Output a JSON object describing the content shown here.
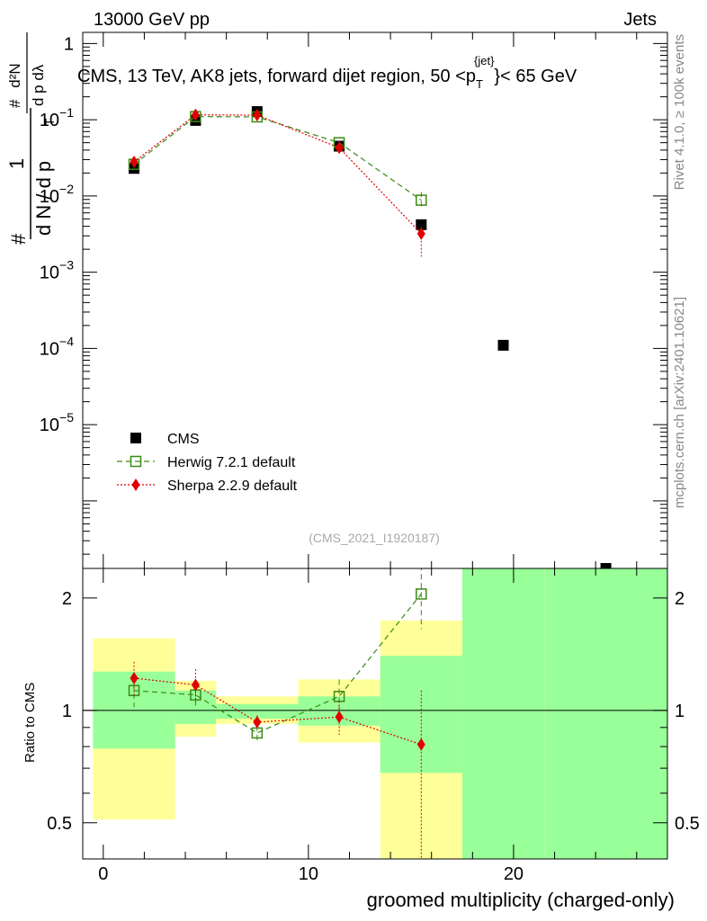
{
  "header": {
    "left": "13000 GeV pp",
    "right": "Jets"
  },
  "side_labels": {
    "rivet": "Rivet 4.1.0, ≥ 100k events",
    "mcplots": "mcplots.cern.ch [arXiv:2401.10621]"
  },
  "watermark": "(CMS_2021_I1920187)",
  "chart_data": {
    "type": "scatter",
    "title": {
      "main": "CMS, 13 TeV, AK8 jets, forward dijet region, 50 <p",
      "sub": "T",
      "sup": "{jet}",
      "tail": "}< 65 GeV"
    },
    "xlabel": "groomed multiplicity (charged-only)",
    "xlim": [
      -1,
      27.5
    ],
    "x_ticks": [
      0,
      10,
      20
    ],
    "top_panel": {
      "yscale": "log",
      "ylim": [
        1.3e-07,
        1.4
      ],
      "y_tick_labels": [
        {
          "value": 1,
          "base": "1",
          "exp": ""
        },
        {
          "value": 0.1,
          "base": "10",
          "exp": "−1"
        },
        {
          "value": 0.01,
          "base": "10",
          "exp": "−2"
        },
        {
          "value": 0.001,
          "base": "10",
          "exp": "−3"
        },
        {
          "value": 0.0001,
          "base": "10",
          "exp": "−4"
        },
        {
          "value": 1e-05,
          "base": "10",
          "exp": "−5"
        }
      ],
      "ylabel": {
        "frac1_num": "1",
        "frac1_den": "d N / d p",
        "frac2_num": "d²N",
        "frac2_den": "d p  dλ",
        "sub": "T",
        "hash": "#"
      },
      "series": [
        {
          "name": "CMS",
          "marker": "square",
          "color": "#000000",
          "line": "none",
          "x": [
            1.5,
            4.5,
            7.5,
            11.5,
            15.5,
            19.5,
            24.5
          ],
          "y": [
            0.023,
            0.098,
            0.128,
            0.045,
            0.0042,
            0.00011,
            1.3e-07
          ]
        },
        {
          "name": "Herwig 7.2.1 default",
          "marker": "open-square",
          "color": "#3a8a14",
          "line": "dashed",
          "x": [
            1.5,
            4.5,
            7.5,
            11.5,
            15.5
          ],
          "y": [
            0.026,
            0.11,
            0.109,
            0.05,
            0.0088
          ],
          "yerr_low": [
            0.002,
            0.004,
            0.004,
            0.002,
            0.002
          ],
          "yerr_high": [
            0.002,
            0.004,
            0.004,
            0.002,
            0.0025
          ]
        },
        {
          "name": "Sherpa 2.2.9 default",
          "marker": "diamond",
          "color": "#e00000",
          "line": "dotted",
          "x": [
            1.5,
            4.5,
            7.5,
            11.5,
            15.5
          ],
          "y": [
            0.028,
            0.116,
            0.115,
            0.043,
            0.0032
          ],
          "yerr_low": [
            0.003,
            0.005,
            0.005,
            0.002,
            0.0016
          ],
          "yerr_high": [
            0.003,
            0.005,
            0.005,
            0.002,
            0.0008
          ]
        }
      ]
    },
    "ratio_panel": {
      "ylabel": "Ratio to CMS",
      "yscale": "log",
      "ylim": [
        0.4,
        2.4
      ],
      "y_ticks": [
        {
          "value": 0.5,
          "label": "0.5"
        },
        {
          "value": 1,
          "label": "1"
        },
        {
          "value": 2,
          "label": "2"
        }
      ],
      "uncertainty_bands": [
        {
          "x0": -0.5,
          "x1": 3.5,
          "stat_low": 0.79,
          "stat_high": 1.27,
          "total_low": 0.51,
          "total_high": 1.56
        },
        {
          "x0": 3.5,
          "x1": 5.5,
          "stat_low": 0.92,
          "stat_high": 1.13,
          "total_low": 0.85,
          "total_high": 1.2
        },
        {
          "x0": 5.5,
          "x1": 9.5,
          "stat_low": 0.95,
          "stat_high": 1.04,
          "total_low": 0.92,
          "total_high": 1.09
        },
        {
          "x0": 9.5,
          "x1": 13.5,
          "stat_low": 0.91,
          "stat_high": 1.09,
          "total_low": 0.82,
          "total_high": 1.21
        },
        {
          "x0": 13.5,
          "x1": 17.5,
          "stat_low": 0.68,
          "stat_high": 1.4,
          "total_low": 0.4,
          "total_high": 1.74
        },
        {
          "x0": 17.5,
          "x1": 21.5,
          "stat_low": 0.4,
          "stat_high": 2.4,
          "total_low": 0.4,
          "total_high": 2.4
        },
        {
          "x0": 21.5,
          "x1": 27.5,
          "stat_low": 0.4,
          "stat_high": 2.4,
          "total_low": 0.4,
          "total_high": 2.4
        }
      ],
      "band_colors": {
        "total": "#ffff99",
        "stat": "#99ff99"
      },
      "series": [
        {
          "name": "Herwig 7.2.1 default",
          "marker": "open-square",
          "color": "#3a8a14",
          "line": "dashed",
          "x": [
            1.5,
            4.5,
            7.5,
            11.5,
            15.5
          ],
          "y": [
            1.13,
            1.1,
            0.87,
            1.09,
            2.05
          ],
          "yerr_low": [
            0.11,
            0.09,
            0.04,
            0.12,
            0.4
          ],
          "yerr_high": [
            0.11,
            0.09,
            0.04,
            0.12,
            0.4
          ]
        },
        {
          "name": "Sherpa 2.2.9 default",
          "marker": "diamond",
          "color": "#e00000",
          "line": "dotted",
          "x": [
            1.5,
            4.5,
            7.5,
            11.5,
            15.5
          ],
          "y": [
            1.22,
            1.17,
            0.93,
            0.96,
            0.81
          ],
          "yerr_low": [
            0.13,
            0.12,
            0.04,
            0.1,
            0.45
          ],
          "yerr_high": [
            0.13,
            0.12,
            0.04,
            0.1,
            0.32
          ]
        }
      ]
    },
    "legend": {
      "position": "bottom-left",
      "entries": [
        "CMS",
        "Herwig 7.2.1 default",
        "Sherpa 2.2.9 default"
      ]
    }
  }
}
